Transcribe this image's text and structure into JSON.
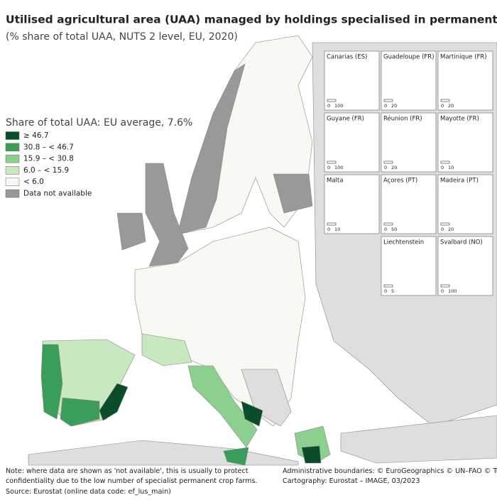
{
  "header": {
    "title": "Utilised agricultural area (UAA) managed by holdings specialised in permanent crops",
    "subtitle": "(% share of total UAA, NUTS 2 level, EU, 2020)"
  },
  "legend": {
    "title": "Share of total UAA: EU average, 7.6%",
    "items": [
      {
        "label": "≥ 46.7",
        "color": "#0b4d2a"
      },
      {
        "label": "30.8 – < 46.7",
        "color": "#3a9e5a"
      },
      {
        "label": "15.9 – < 30.8",
        "color": "#8ccf8f"
      },
      {
        "label": "6.0 – < 15.9",
        "color": "#c8e8c2"
      },
      {
        "label": "< 6.0",
        "color": "#f6faf2"
      },
      {
        "label": "Data not available",
        "color": "#999999"
      }
    ]
  },
  "insets": [
    {
      "label": "Canarias (ES)",
      "scale": [
        "0",
        "100"
      ]
    },
    {
      "label": "Guadeloupe (FR)",
      "scale": [
        "0",
        "20"
      ]
    },
    {
      "label": "Martinique (FR)",
      "scale": [
        "0",
        "20"
      ]
    },
    {
      "label": "Guyane (FR)",
      "scale": [
        "0",
        "100"
      ]
    },
    {
      "label": "Réunion (FR)",
      "scale": [
        "0",
        "20"
      ]
    },
    {
      "label": "Mayotte (FR)",
      "scale": [
        "0",
        "10"
      ]
    },
    {
      "label": "Malta",
      "scale": [
        "0",
        "10"
      ]
    },
    {
      "label": "Açores (PT)",
      "scale": [
        "0",
        "50"
      ]
    },
    {
      "label": "Madeira (PT)",
      "scale": [
        "0",
        "20"
      ]
    },
    {
      "label": "Liechtenstein",
      "scale": [
        "0",
        "5"
      ]
    },
    {
      "label": "Svalbard (NO)",
      "scale": [
        "0",
        "100"
      ]
    }
  ],
  "footer": {
    "note": [
      "Note: where data are shown as 'not available', this is usually to protect",
      "confidentiality due to the low number of specialist permanent crop farms."
    ],
    "source": "Source: Eurostat (online data code: ef_lus_main)",
    "credits": [
      "Administrative boundaries: © EuroGeographics © UN–FAO © Turkstat",
      "Cartography: Eurostat – IMAGE, 03/2023"
    ]
  }
}
